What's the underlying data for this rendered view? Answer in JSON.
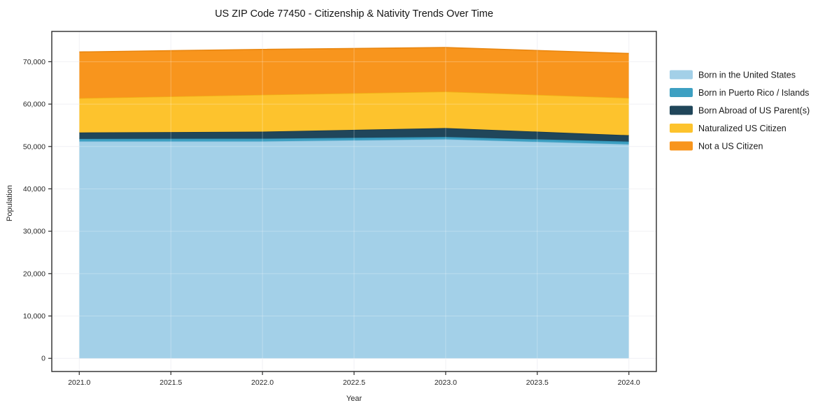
{
  "chart_data": {
    "type": "area",
    "stacked": true,
    "title": "US ZIP Code 77450 - Citizenship & Nativity Trends Over Time",
    "xlabel": "Year",
    "ylabel": "Population",
    "x": [
      2021,
      2022,
      2023,
      2024
    ],
    "series": [
      {
        "name": "Born in the United States",
        "color": "#a3d0e8",
        "edge": "#8cc1dd",
        "values": [
          51200,
          51200,
          51700,
          50500
        ]
      },
      {
        "name": "Born in Puerto Rico / Islands",
        "color": "#3da0c2",
        "edge": "#2f8fb2",
        "values": [
          600,
          650,
          550,
          650
        ]
      },
      {
        "name": "Born Abroad of US Parent(s)",
        "color": "#20465a",
        "edge": "#16374a",
        "values": [
          1500,
          1650,
          2100,
          1500
        ]
      },
      {
        "name": "Naturalized US Citizen",
        "color": "#fdc32d",
        "edge": "#f0b115",
        "values": [
          8100,
          8700,
          8600,
          8800
        ]
      },
      {
        "name": "Not a US Citizen",
        "color": "#f8951d",
        "edge": "#e9860f",
        "values": [
          10900,
          10700,
          10400,
          10500
        ]
      }
    ],
    "totals": [
      72300,
      72900,
      73350,
      71950
    ],
    "xticks": [
      2021.0,
      2021.5,
      2022.0,
      2022.5,
      2023.0,
      2023.5,
      2024.0
    ],
    "xtick_labels": [
      "2021.0",
      "2021.5",
      "2022.0",
      "2022.5",
      "2023.0",
      "2023.5",
      "2024.0"
    ],
    "yticks": [
      0,
      10000,
      20000,
      30000,
      40000,
      50000,
      60000,
      70000
    ],
    "ytick_labels": [
      "0",
      "10,000",
      "20,000",
      "30,000",
      "40,000",
      "50,000",
      "60,000",
      "70,000"
    ],
    "xlim": [
      2020.85,
      2024.15
    ],
    "ylim": [
      -3100,
      77150
    ],
    "grid": true,
    "legend_position": "right",
    "colors": {
      "background": "#ffffff",
      "plot_border": "#2b2b2b",
      "gridline": "#ededf2",
      "gridline_over_fill": "rgba(255,255,255,0.28)",
      "tick": "#2b2b2b",
      "text": "#262626"
    }
  }
}
